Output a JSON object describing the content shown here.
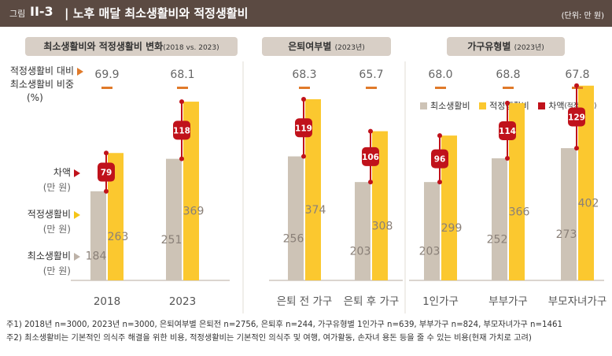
{
  "header": {
    "figure_label": "그림",
    "figure_number": "II-3",
    "title": "| 노후 매달 최소생활비와 적정생활비",
    "unit": "(단위: 만 원)"
  },
  "panels": [
    {
      "title": "최소생활비와 적정생활비 변화",
      "subtitle": "(2018 vs. 2023)"
    },
    {
      "title": "은퇴여부별",
      "subtitle": "(2023년)"
    },
    {
      "title": "가구유형별",
      "subtitle": "(2023년)"
    }
  ],
  "side_labels": {
    "ratio_line1": "적정생활비 대비",
    "ratio_line2": "최소생활비 비중",
    "ratio_unit": "(%)",
    "gap": "차액",
    "gap_unit": "(만 원)",
    "adequate": "적정생활비",
    "adequate_unit": "(만 원)",
    "minimum": "최소생활비",
    "minimum_unit": "(만 원)"
  },
  "legend": {
    "minimum": "최소생활비",
    "adequate": "적정생활비",
    "gap": "차액",
    "gap_note": "(적정-최소)"
  },
  "colors": {
    "minimum": "#cdc3b6",
    "adequate": "#fbc82f",
    "gap": "#c0121b",
    "ratio_dash": "#e07a2a",
    "title_bg": "#5b4a42",
    "pill_bg": "#d8cfc6"
  },
  "chart_data": {
    "type": "bar",
    "title": "노후 매달 최소생활비와 적정생활비",
    "unit": "만 원",
    "categories": [
      "2018",
      "2023",
      "은퇴 전 가구",
      "은퇴 후 가구",
      "1인가구",
      "부부가구",
      "부모자녀가구"
    ],
    "series": [
      {
        "name": "최소생활비",
        "values": [
          184,
          251,
          256,
          203,
          203,
          252,
          273
        ]
      },
      {
        "name": "적정생활비",
        "values": [
          263,
          369,
          374,
          308,
          299,
          366,
          402
        ]
      },
      {
        "name": "차액(적정-최소)",
        "values": [
          79,
          118,
          119,
          106,
          96,
          114,
          129
        ]
      }
    ],
    "ratio_series": {
      "name": "적정생활비 대비 최소생활비 비중 (%)",
      "values": [
        "69.9",
        "68.1",
        "68.3",
        "65.7",
        "68.0",
        "68.8",
        "67.8"
      ]
    },
    "ylim": [
      0,
      420
    ],
    "groups": [
      {
        "title": "최소생활비와 적정생활비 변화",
        "categories": [
          "2018",
          "2023"
        ]
      },
      {
        "title": "은퇴여부별",
        "categories": [
          "은퇴 전 가구",
          "은퇴 후 가구"
        ]
      },
      {
        "title": "가구유형별",
        "categories": [
          "1인가구",
          "부부가구",
          "부모자녀가구"
        ]
      }
    ]
  },
  "notes": [
    "주1) 2018년 n=3000, 2023년 n=3000, 은퇴여부별 은퇴전 n=2756, 은퇴후 n=244, 가구유형별 1인가구 n=639, 부부가구 n=824, 부모자녀가구 n=1461",
    "주2) 최소생활비는 기본적인 의식주 해결을 위한 비용, 적정생활비는 기본적인 의식주 및 여행, 여가활동, 손자녀 용돈 등을 줄 수 있는 비용(현재 가치로 고려)"
  ]
}
